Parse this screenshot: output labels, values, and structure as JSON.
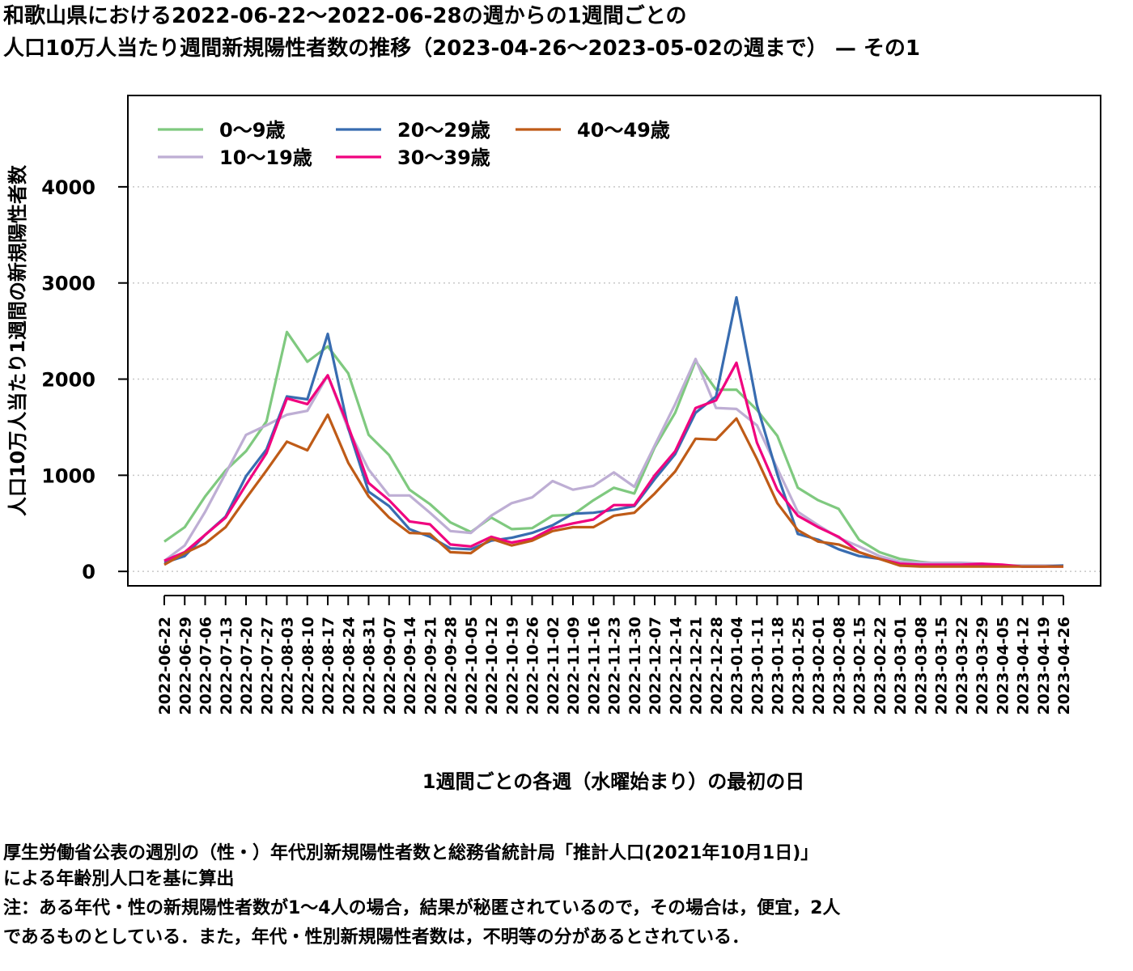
{
  "title_line1": "和歌山県における2022-06-22〜2022-06-28の週からの1週間ごとの",
  "title_line2": "人口10万人当たり週間新規陽性者数の推移（2023-04-26〜2023-05-02の週まで） — その1",
  "notes": [
    "厚生労働省公表の週別の（性・）年代別新規陽性者数と総務省統計局「推計人口(2021年10月1日)」",
    "による年齢別人口を基に算出",
    "注：ある年代・性の新規陽性者数が1〜4人の場合，結果が秘匿されているので，その場合は，便宜，2人",
    "であるものとしている．また，年代・性別新規陽性者数は，不明等の分があるとされている．"
  ],
  "chart_data": {
    "type": "line",
    "xlabel": "1週間ごとの各週（水曜始まり）の最初の日",
    "ylabel": "人口10万人当たり1週間の新規陽性者数",
    "ylim": [
      -150,
      4950
    ],
    "yticks": [
      0,
      1000,
      2000,
      3000,
      4000
    ],
    "grid": "horizontal-dotted",
    "legend_position": "top-left",
    "x": [
      "2022-06-22",
      "2022-06-29",
      "2022-07-06",
      "2022-07-13",
      "2022-07-20",
      "2022-07-27",
      "2022-08-03",
      "2022-08-10",
      "2022-08-17",
      "2022-08-24",
      "2022-08-31",
      "2022-09-07",
      "2022-09-14",
      "2022-09-21",
      "2022-09-28",
      "2022-10-05",
      "2022-10-12",
      "2022-10-19",
      "2022-10-26",
      "2022-11-02",
      "2022-11-09",
      "2022-11-16",
      "2022-11-23",
      "2022-11-30",
      "2022-12-07",
      "2022-12-14",
      "2022-12-21",
      "2022-12-28",
      "2023-01-04",
      "2023-01-11",
      "2023-01-18",
      "2023-01-25",
      "2023-02-01",
      "2023-02-08",
      "2023-02-15",
      "2023-02-22",
      "2023-03-01",
      "2023-03-08",
      "2023-03-15",
      "2023-03-22",
      "2023-03-29",
      "2023-04-05",
      "2023-04-12",
      "2023-04-19",
      "2023-04-26"
    ],
    "series": [
      {
        "name": "0〜9歳",
        "color": "#7fc97f",
        "values": [
          310,
          460,
          780,
          1050,
          1250,
          1560,
          2490,
          2180,
          2340,
          2060,
          1420,
          1210,
          850,
          700,
          510,
          410,
          560,
          440,
          450,
          580,
          590,
          740,
          870,
          810,
          1290,
          1650,
          2190,
          1890,
          1890,
          1680,
          1410,
          870,
          740,
          650,
          330,
          200,
          130,
          100,
          80,
          80,
          70,
          60,
          60,
          60,
          60
        ]
      },
      {
        "name": "10〜19歳",
        "color": "#beaed4",
        "values": [
          110,
          270,
          620,
          1020,
          1420,
          1520,
          1630,
          1670,
          2040,
          1480,
          1060,
          790,
          790,
          610,
          420,
          400,
          580,
          710,
          770,
          940,
          850,
          890,
          1030,
          880,
          1310,
          1740,
          2210,
          1700,
          1690,
          1520,
          1070,
          620,
          480,
          350,
          260,
          160,
          100,
          90,
          90,
          90,
          80,
          60,
          60,
          60,
          60
        ]
      },
      {
        "name": "20〜29歳",
        "color": "#386cb0",
        "values": [
          90,
          160,
          380,
          570,
          990,
          1270,
          1820,
          1790,
          2470,
          1490,
          830,
          680,
          440,
          360,
          240,
          230,
          320,
          350,
          400,
          480,
          600,
          610,
          640,
          680,
          960,
          1220,
          1650,
          1820,
          2850,
          1730,
          1010,
          390,
          330,
          230,
          160,
          130,
          70,
          60,
          60,
          60,
          70,
          60,
          50,
          50,
          60
        ]
      },
      {
        "name": "30〜39歳",
        "color": "#f0027f",
        "values": [
          110,
          200,
          380,
          560,
          900,
          1230,
          1800,
          1740,
          2040,
          1510,
          920,
          740,
          520,
          490,
          280,
          260,
          360,
          300,
          340,
          450,
          500,
          540,
          690,
          690,
          1000,
          1250,
          1700,
          1780,
          2170,
          1340,
          850,
          580,
          460,
          360,
          200,
          130,
          80,
          70,
          70,
          70,
          80,
          70,
          50,
          50,
          50
        ]
      },
      {
        "name": "40〜49歳",
        "color": "#bf5b17",
        "values": [
          70,
          190,
          290,
          460,
          760,
          1050,
          1350,
          1260,
          1630,
          1130,
          780,
          560,
          400,
          390,
          200,
          190,
          340,
          270,
          320,
          420,
          460,
          460,
          580,
          610,
          810,
          1040,
          1380,
          1370,
          1590,
          1170,
          710,
          430,
          310,
          280,
          200,
          130,
          60,
          50,
          50,
          50,
          50,
          50,
          50,
          50,
          50
        ]
      }
    ]
  }
}
